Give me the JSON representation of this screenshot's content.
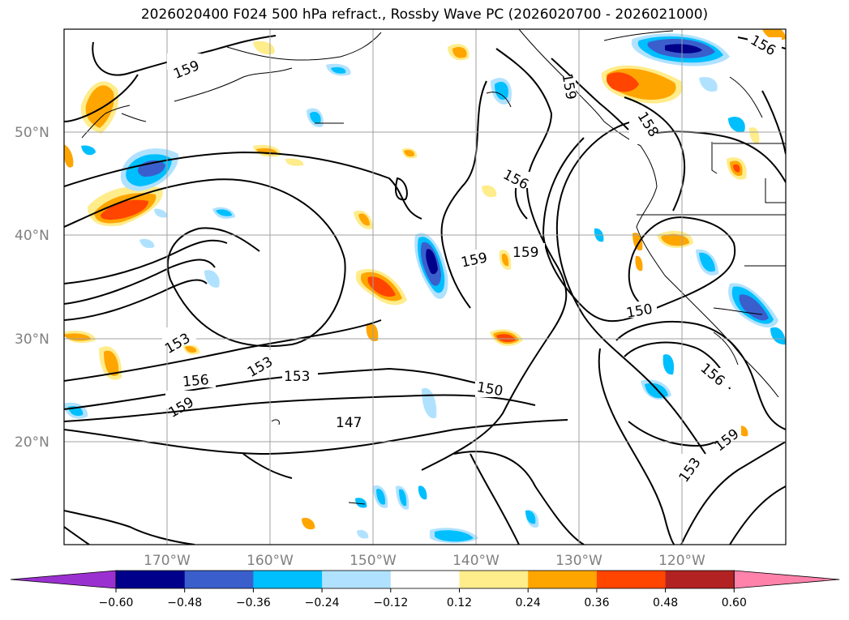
{
  "title": "2026020400 F024 500 hPa refract., Rossby Wave PC (2026020700 - 2026021000)",
  "lat_labels": [
    "50°N",
    "40°N",
    "30°N",
    "20°N"
  ],
  "lon_labels": [
    "170°W",
    "160°W",
    "150°W",
    "140°W",
    "130°W",
    "120°W"
  ],
  "colorbar": {
    "colors": [
      "#9b30d0",
      "#00008b",
      "#3a5fcd",
      "#00bfff",
      "#b0e2ff",
      "#ffffff",
      "#ffec8b",
      "#ffa500",
      "#ff4500",
      "#b22222",
      "#ff82ab"
    ],
    "ticks": [
      "−0.60",
      "−0.48",
      "−0.36",
      "−0.24",
      "−0.12",
      "0.12",
      "0.24",
      "0.36",
      "0.48",
      "0.60"
    ]
  },
  "contour_labels": [
    {
      "text": "159"
    },
    {
      "text": "159"
    },
    {
      "text": "156"
    },
    {
      "text": "156"
    },
    {
      "text": "158"
    },
    {
      "text": "159"
    },
    {
      "text": "159"
    },
    {
      "text": "150"
    },
    {
      "text": "153"
    },
    {
      "text": "153"
    },
    {
      "text": "156"
    },
    {
      "text": "153"
    },
    {
      "text": "159"
    },
    {
      "text": "150"
    },
    {
      "text": "147"
    },
    {
      "text": "156"
    },
    {
      "text": "159"
    },
    {
      "text": "153"
    }
  ],
  "legend_values": {
    "negative_colors": [
      "#b0e2ff",
      "#00bfff",
      "#3a5fcd",
      "#00008b"
    ],
    "positive_colors": [
      "#ffec8b",
      "#ffa500",
      "#ff4500",
      "#b22222"
    ]
  }
}
